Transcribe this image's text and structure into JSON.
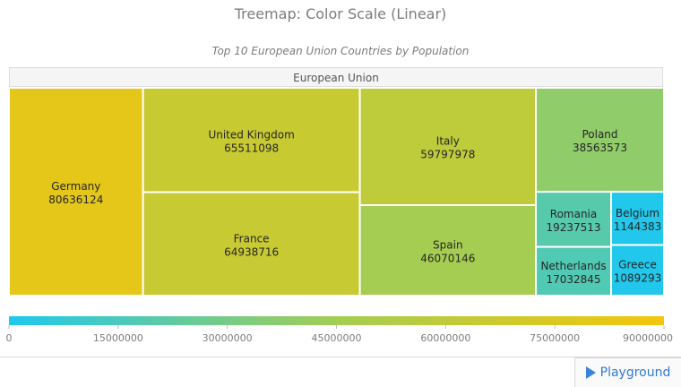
{
  "chart_data": {
    "type": "treemap",
    "title": "Treemap: Color Scale (Linear)",
    "subtitle": "Top 10 European Union Countries by Population",
    "root": "European Union",
    "items": [
      {
        "name": "Germany",
        "value": 80636124
      },
      {
        "name": "United Kingdom",
        "value": 65511098
      },
      {
        "name": "France",
        "value": 64938716
      },
      {
        "name": "Italy",
        "value": 59797978
      },
      {
        "name": "Spain",
        "value": 46070146
      },
      {
        "name": "Poland",
        "value": 38563573
      },
      {
        "name": "Romania",
        "value": 19237513
      },
      {
        "name": "Netherlands",
        "value": 17032845
      },
      {
        "name": "Belgium",
        "value": 1144383
      },
      {
        "name": "Greece",
        "value": 1089293
      }
    ],
    "color_scale": {
      "type": "linear",
      "min": 0,
      "max": 90000000,
      "ticks": [
        0,
        15000000,
        30000000,
        45000000,
        60000000,
        75000000,
        90000000
      ],
      "colors": [
        "#1ec8ef",
        "#a3cd53",
        "#f5c60a"
      ]
    }
  },
  "playground": {
    "label": "Playground",
    "icon": "play-icon"
  }
}
